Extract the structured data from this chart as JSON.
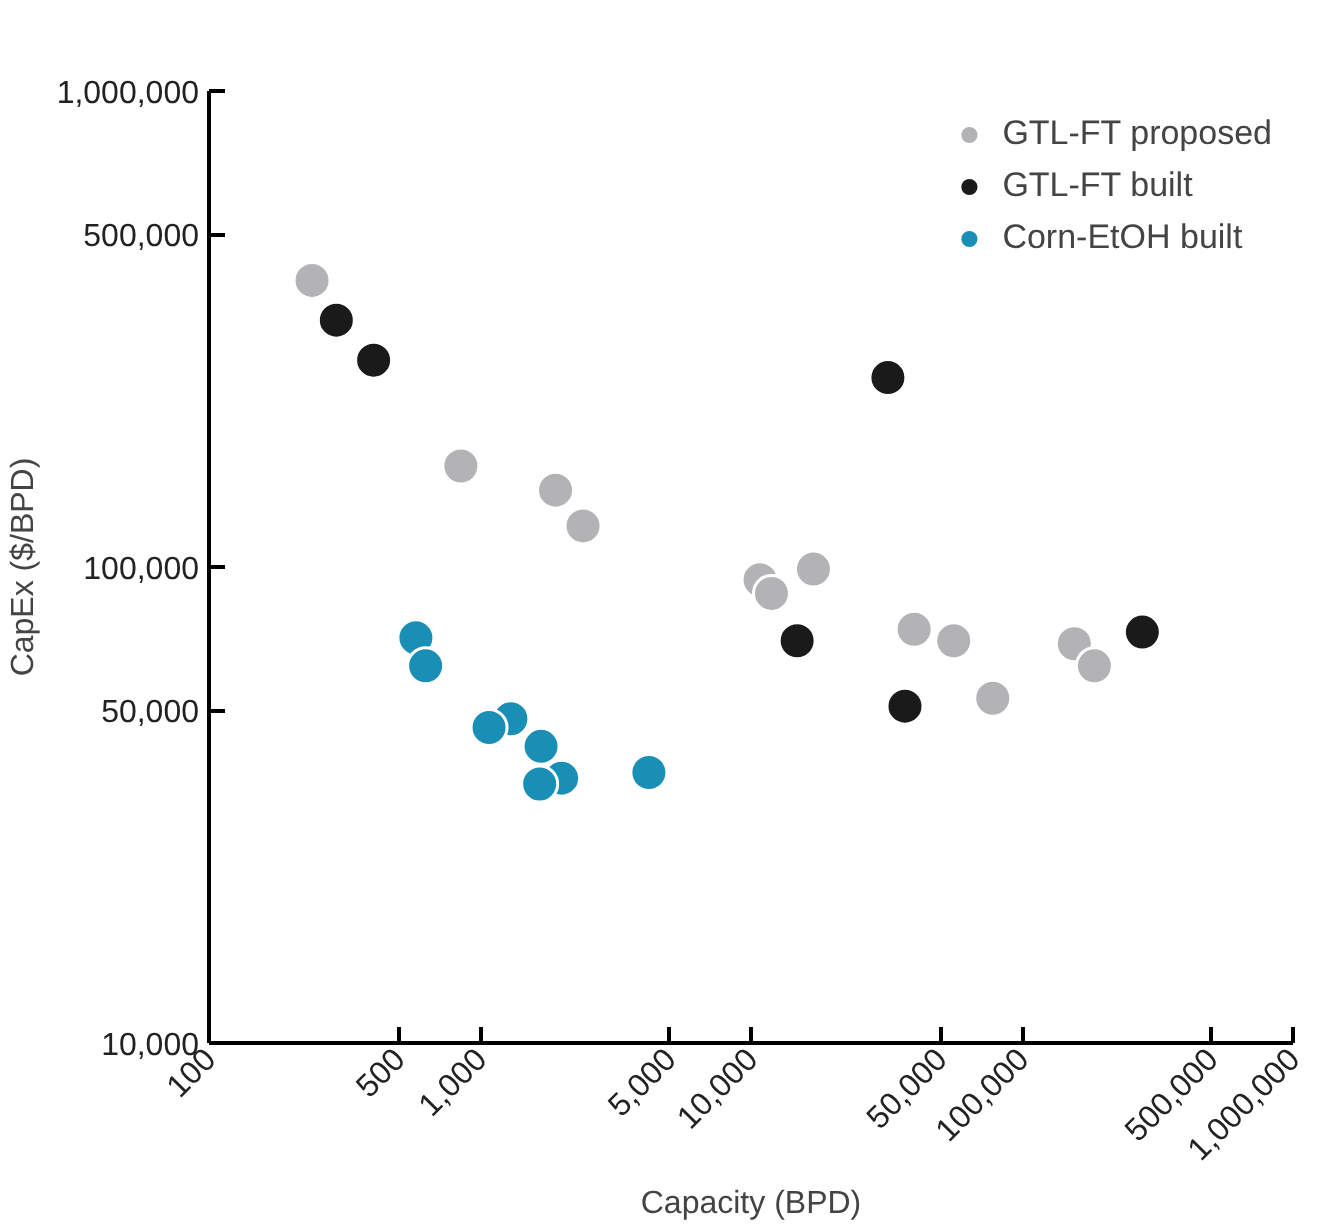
{
  "chart_data": {
    "type": "scatter",
    "xlabel": "Capacity (BPD)",
    "ylabel": "CapEx ($/BPD)",
    "log": "xy",
    "grid": false,
    "legend": "top right",
    "marker": "circle",
    "xlim": [
      100,
      1000000
    ],
    "ylim": [
      10000,
      1000000
    ],
    "xticks": [
      100,
      500,
      {
        "value": 1000,
        "label": "1,000"
      },
      {
        "value": 5000,
        "label": "5,000"
      },
      {
        "value": 10000,
        "label": "10,000"
      },
      {
        "value": 50000,
        "label": "50,000"
      },
      {
        "value": 100000,
        "label": "100,000"
      },
      {
        "value": 500000,
        "label": "500,000"
      },
      {
        "value": 1000000,
        "label": "1,000,000"
      }
    ],
    "yticks": [
      {
        "value": 10000,
        "label": "10,000"
      },
      {
        "value": 50000,
        "label": "50,000"
      },
      {
        "value": 100000,
        "label": "100,000"
      },
      {
        "value": 500000,
        "label": "500,000"
      },
      {
        "value": 1000000,
        "label": "1,000,000"
      }
    ],
    "series": [
      {
        "name": "GTL-FT proposed",
        "color": "#b3b3b5",
        "x": [
          240,
          850,
          1900,
          2400,
          10800,
          11900,
          17000,
          40000,
          56000,
          78000,
          156000,
          185000
        ],
        "values": [
          400000,
          163000,
          145000,
          122000,
          94000,
          88000,
          99000,
          74000,
          70000,
          53000,
          69000,
          62000
        ]
      },
      {
        "name": "GTL-FT built",
        "color": "#1a1a1a",
        "x": [
          295,
          405,
          32000,
          14800,
          37000,
          278000
        ],
        "values": [
          330000,
          272000,
          250000,
          70000,
          51000,
          73000
        ]
      },
      {
        "name": "Corn-EtOH built",
        "color": "#1a8fb5",
        "x": [
          580,
          630,
          1300,
          1080,
          1680,
          2000,
          1660,
          4200
        ],
        "values": [
          71000,
          62000,
          48000,
          46000,
          42000,
          36000,
          35000,
          37000
        ]
      }
    ]
  }
}
